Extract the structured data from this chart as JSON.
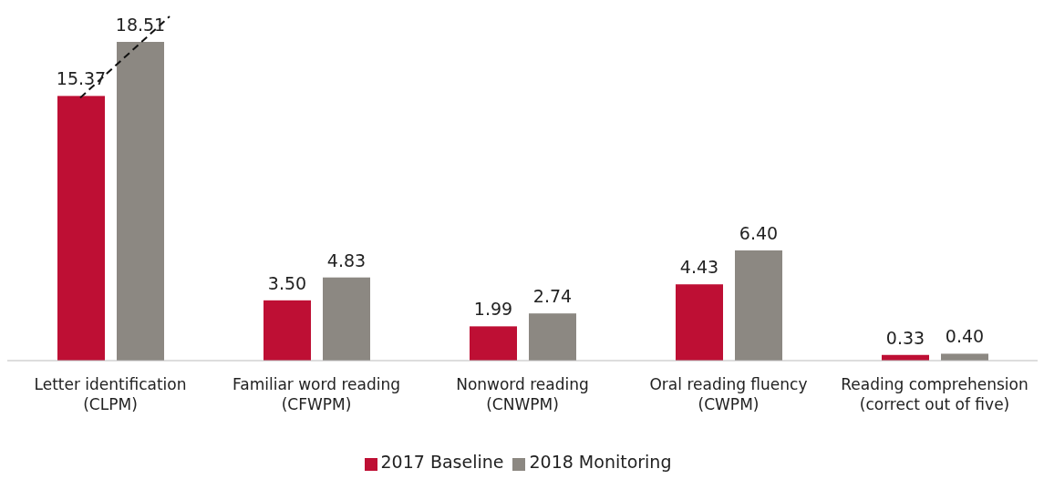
{
  "chart_data": {
    "type": "bar",
    "categories": [
      "Letter identification (CLPM)",
      "Familiar word reading (CFWPM)",
      "Nonword reading (CNWPM)",
      "Oral reading fluency (CWPM)",
      "Reading comprehension (correct out of five)"
    ],
    "series": [
      {
        "name": "2017 Baseline",
        "color": "#be0f34",
        "values": [
          15.37,
          3.5,
          1.99,
          4.43,
          0.33
        ],
        "value_labels": [
          "15.37",
          "3.50",
          "1.99",
          "4.43",
          "0.33"
        ]
      },
      {
        "name": "2018 Monitoring",
        "color": "#8c8882",
        "values": [
          18.51,
          4.83,
          2.74,
          6.4,
          0.4
        ],
        "value_labels": [
          "18.51",
          "4.83",
          "2.74",
          "6.40",
          "0.40"
        ]
      }
    ],
    "legend": "bottom",
    "grid": false
  }
}
